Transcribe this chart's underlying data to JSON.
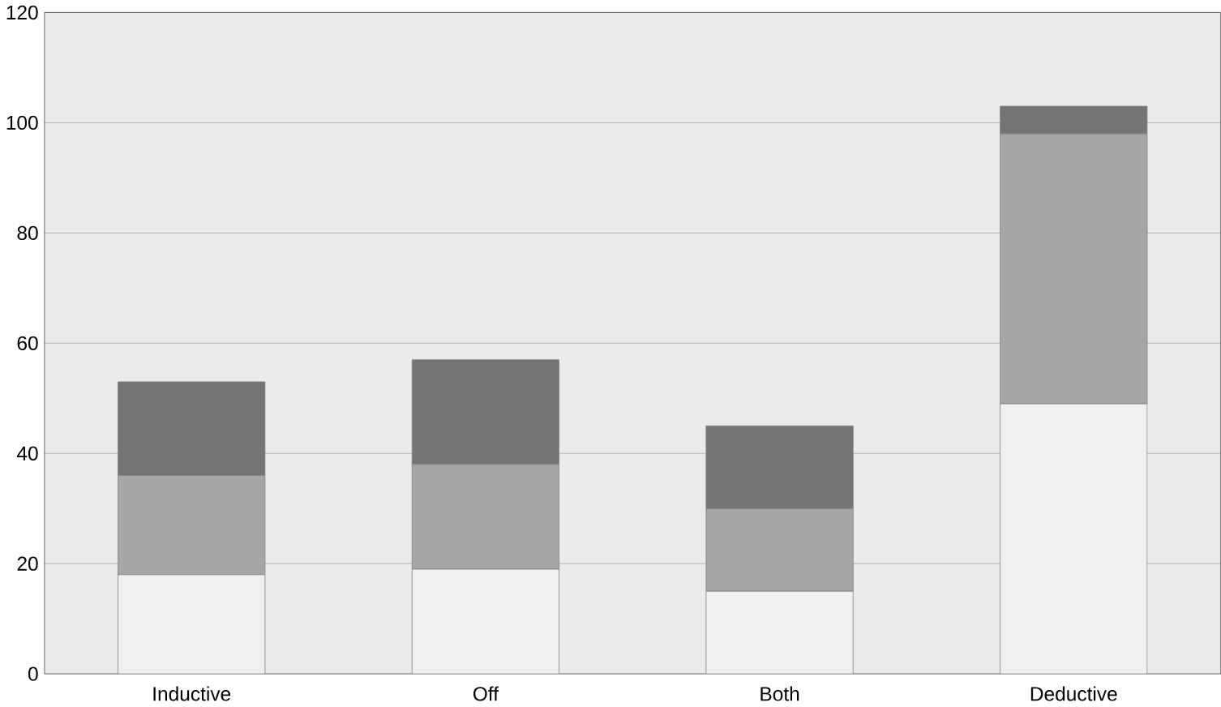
{
  "chart_data": {
    "type": "bar",
    "stacked": true,
    "categories": [
      "Inductive",
      "Off",
      "Both",
      "Deductive"
    ],
    "series": [
      {
        "color": "#f0f0f0",
        "values": [
          18,
          19,
          15,
          49
        ]
      },
      {
        "color": "#a6a6a6",
        "values": [
          18,
          19,
          15,
          49
        ]
      },
      {
        "color": "#757575",
        "values": [
          17,
          19,
          15,
          5
        ]
      }
    ],
    "ylim": [
      0,
      120
    ],
    "yticks": [
      0,
      20,
      40,
      60,
      80,
      100,
      120
    ],
    "grid": "y"
  }
}
